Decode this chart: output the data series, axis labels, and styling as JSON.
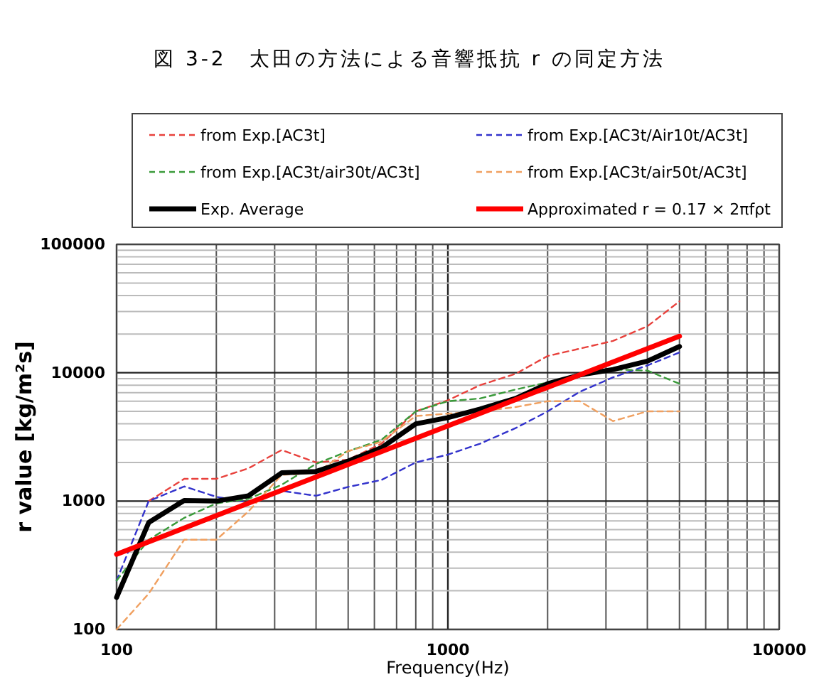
{
  "chart_data": {
    "type": "line",
    "title": "図 3-2　太田の方法による音響抵抗 r の同定方法",
    "xlabel": "Frequency(Hz)",
    "ylabel": "r value [kg/m²s]",
    "log": "xy",
    "grid": true,
    "legend": "top",
    "xlim": [
      100,
      10000
    ],
    "xticks": [
      100,
      1000,
      10000
    ],
    "ylim": [
      100,
      100000
    ],
    "yticks": [
      100,
      1000,
      10000,
      100000
    ],
    "x": [
      100,
      125,
      160,
      200,
      250,
      315,
      400,
      500,
      630,
      800,
      1000,
      1250,
      1600,
      2000,
      2500,
      3150,
      4000,
      5000
    ],
    "series": [
      {
        "name": "from Exp.[AC3t]",
        "color": "#e8413c",
        "line_style": "dashed",
        "values": [
          null,
          1000,
          1490,
          1490,
          1800,
          2500,
          2000,
          2100,
          2800,
          5000,
          6100,
          8000,
          9800,
          13500,
          15400,
          17700,
          23000,
          36000
        ]
      },
      {
        "name": "from Exp.[AC3t/Air10t/AC3t]",
        "color": "#3333cc",
        "line_style": "dashed",
        "values": [
          240,
          1000,
          1300,
          1080,
          980,
          1200,
          1100,
          1290,
          1460,
          2000,
          2300,
          2800,
          3700,
          5000,
          7100,
          9200,
          11400,
          14400
        ]
      },
      {
        "name": "from Exp.[AC3t/air30t/AC3t]",
        "color": "#3a9a3a",
        "line_style": "dashed",
        "values": [
          240,
          500,
          740,
          960,
          1040,
          1340,
          1950,
          2450,
          3000,
          5000,
          6000,
          6300,
          7400,
          8400,
          9600,
          10600,
          10400,
          8200
        ]
      },
      {
        "name": "from Exp.[AC3t/air50t/AC3t]",
        "color": "#f0a060",
        "line_style": "dashed",
        "values": [
          100,
          190,
          500,
          500,
          830,
          1600,
          1660,
          2450,
          2900,
          4600,
          4800,
          5000,
          5400,
          6000,
          6000,
          4200,
          5000,
          5000
        ]
      },
      {
        "name": "Exp. Average",
        "color": "#000000",
        "line_style": "solid",
        "values": [
          178,
          680,
          1010,
          1000,
          1100,
          1660,
          1700,
          2050,
          2600,
          4000,
          4470,
          5200,
          6300,
          8200,
          9600,
          10600,
          12300,
          16000
        ]
      },
      {
        "name": "Approximated  r = 0.17 × 2πfρt",
        "color": "#ff0000",
        "line_style": "solid",
        "x": [
          100,
          5000
        ],
        "values": [
          385,
          19250
        ]
      }
    ]
  }
}
